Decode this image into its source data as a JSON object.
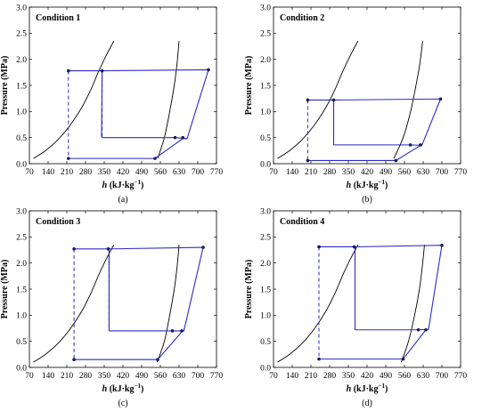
{
  "figure": {
    "colors": {
      "cycle": "#2b2bc8",
      "dashed": "#2b2bc8",
      "saturation": "#000000",
      "axis": "#000000"
    }
  },
  "chart_data": [
    {
      "type": "line",
      "panel_label": "(a)",
      "title": "Condition 1",
      "xlabel_italic": "h",
      "xlabel_rest": " (kJ·kg",
      "xlabel_sup": "−1",
      "xlabel_end": ")",
      "ylabel": "Pressure (MPa)",
      "xlim": [
        70,
        770
      ],
      "ylim": [
        0.0,
        3.0
      ],
      "xticks": [
        "70",
        "140",
        "210",
        "280",
        "350",
        "420",
        "490",
        "560",
        "630",
        "700",
        "770"
      ],
      "yticks": [
        "0.0",
        "0.5",
        "1.0",
        "1.5",
        "2.0",
        "2.5",
        "3.0"
      ],
      "series": [
        {
          "role": "saturation-liquid",
          "x": [
            85,
            130,
            175,
            220,
            265,
            300,
            330,
            360,
            386
          ],
          "y": [
            0.1,
            0.25,
            0.45,
            0.72,
            1.07,
            1.42,
            1.78,
            2.1,
            2.35
          ]
        },
        {
          "role": "saturation-vapor",
          "x": [
            550,
            575,
            595,
            612,
            622,
            630
          ],
          "y": [
            0.1,
            0.5,
            1.0,
            1.5,
            1.9,
            2.35
          ]
        },
        {
          "role": "cycle-solid",
          "x": [
            340,
            342,
            740,
            660,
            615,
            342
          ],
          "y": [
            0.5,
            1.78,
            1.8,
            0.48,
            0.5,
            0.5
          ]
        },
        {
          "role": "cycle-solid",
          "x": [
            216,
            540,
            644,
            660
          ],
          "y": [
            0.1,
            0.1,
            0.48,
            0.48
          ]
        },
        {
          "role": "line-high-left",
          "x": [
            216,
            342
          ],
          "y": [
            1.78,
            1.78
          ]
        },
        {
          "role": "dashed",
          "x": [
            216,
            216
          ],
          "y": [
            1.78,
            0.1
          ]
        },
        {
          "role": "dashed",
          "x": [
            342,
            342
          ],
          "y": [
            1.78,
            0.5
          ]
        },
        {
          "role": "points",
          "x": [
            216,
            342,
            740,
            615,
            644,
            216,
            540
          ],
          "y": [
            1.78,
            1.78,
            1.8,
            0.5,
            0.5,
            0.1,
            0.1
          ]
        }
      ]
    },
    {
      "type": "line",
      "panel_label": "(b)",
      "title": "Condition 2",
      "xlabel_italic": "h",
      "xlabel_rest": " (kJ·kg",
      "xlabel_sup": "−1",
      "xlabel_end": ")",
      "ylabel": "Pressure (MPa)",
      "xlim": [
        70,
        770
      ],
      "ylim": [
        0.0,
        3.0
      ],
      "xticks": [
        "70",
        "140",
        "210",
        "280",
        "350",
        "420",
        "490",
        "560",
        "630",
        "700",
        "770"
      ],
      "yticks": [
        "0.0",
        "0.5",
        "1.0",
        "1.5",
        "2.0",
        "2.5",
        "3.0"
      ],
      "series": [
        {
          "role": "saturation-liquid",
          "x": [
            85,
            130,
            175,
            220,
            265,
            300,
            330,
            360,
            386
          ],
          "y": [
            0.1,
            0.25,
            0.45,
            0.72,
            1.07,
            1.42,
            1.78,
            2.1,
            2.35
          ]
        },
        {
          "role": "saturation-vapor",
          "x": [
            520,
            555,
            583,
            603,
            617,
            628
          ],
          "y": [
            0.1,
            0.5,
            1.0,
            1.5,
            1.9,
            2.35
          ]
        },
        {
          "role": "cycle-solid",
          "x": [
            295,
            295,
            695,
            625,
            580,
            295
          ],
          "y": [
            0.36,
            1.22,
            1.24,
            0.35,
            0.36,
            0.36
          ]
        },
        {
          "role": "cycle-solid",
          "x": [
            198,
            528,
            620,
            625
          ],
          "y": [
            0.06,
            0.06,
            0.35,
            0.35
          ]
        },
        {
          "role": "line-high-left",
          "x": [
            198,
            295
          ],
          "y": [
            1.22,
            1.22
          ]
        },
        {
          "role": "dashed",
          "x": [
            198,
            198
          ],
          "y": [
            1.22,
            0.06
          ]
        },
        {
          "role": "dashed",
          "x": [
            295,
            295
          ],
          "y": [
            1.22,
            0.36
          ]
        },
        {
          "role": "points",
          "x": [
            198,
            295,
            695,
            582,
            620,
            198,
            528
          ],
          "y": [
            1.22,
            1.22,
            1.24,
            0.36,
            0.36,
            0.06,
            0.06
          ]
        }
      ]
    },
    {
      "type": "line",
      "panel_label": "(c)",
      "title": "Condition 3",
      "xlabel_italic": "h",
      "xlabel_rest": " (kJ·kg",
      "xlabel_sup": "−1",
      "xlabel_end": ")",
      "ylabel": "Pressure (MPa)",
      "xlim": [
        70,
        770
      ],
      "ylim": [
        0.0,
        3.0
      ],
      "xticks": [
        "70",
        "140",
        "210",
        "280",
        "350",
        "420",
        "490",
        "560",
        "630",
        "700",
        "770"
      ],
      "yticks": [
        "0.0",
        "0.5",
        "1.0",
        "1.5",
        "2.0",
        "2.5",
        "3.0"
      ],
      "series": [
        {
          "role": "saturation-liquid",
          "x": [
            85,
            130,
            175,
            220,
            265,
            300,
            330,
            360,
            386
          ],
          "y": [
            0.1,
            0.25,
            0.45,
            0.72,
            1.07,
            1.42,
            1.78,
            2.1,
            2.35
          ]
        },
        {
          "role": "saturation-vapor",
          "x": [
            548,
            575,
            595,
            612,
            622,
            630
          ],
          "y": [
            0.1,
            0.5,
            1.0,
            1.5,
            1.9,
            2.35
          ]
        },
        {
          "role": "cycle-solid",
          "x": [
            368,
            368,
            720,
            648,
            605,
            368
          ],
          "y": [
            0.7,
            2.27,
            2.3,
            0.7,
            0.7,
            0.7
          ]
        },
        {
          "role": "cycle-solid",
          "x": [
            237,
            550,
            640,
            648
          ],
          "y": [
            0.15,
            0.15,
            0.68,
            0.7
          ]
        },
        {
          "role": "line-high-left",
          "x": [
            237,
            368
          ],
          "y": [
            2.27,
            2.27
          ]
        },
        {
          "role": "dashed",
          "x": [
            237,
            237
          ],
          "y": [
            2.27,
            0.15
          ]
        },
        {
          "role": "dashed",
          "x": [
            368,
            368
          ],
          "y": [
            2.27,
            0.7
          ]
        },
        {
          "role": "points",
          "x": [
            237,
            365,
            720,
            605,
            640,
            237,
            550
          ],
          "y": [
            2.27,
            2.27,
            2.3,
            0.7,
            0.7,
            0.15,
            0.15
          ]
        }
      ]
    },
    {
      "type": "line",
      "panel_label": "(d)",
      "title": "Condition 4",
      "xlabel_italic": "h",
      "xlabel_rest": " (kJ·kg",
      "xlabel_sup": "−1",
      "xlabel_end": ")",
      "ylabel": "Pressure (MPa)",
      "xlim": [
        70,
        770
      ],
      "ylim": [
        0.0,
        3.0
      ],
      "xticks": [
        "70",
        "140",
        "210",
        "280",
        "350",
        "420",
        "490",
        "560",
        "630",
        "700",
        "770"
      ],
      "yticks": [
        "0.0",
        "0.5",
        "1.0",
        "1.5",
        "2.0",
        "2.5",
        "3.0"
      ],
      "series": [
        {
          "role": "saturation-liquid",
          "x": [
            85,
            130,
            175,
            220,
            265,
            300,
            330,
            360,
            386
          ],
          "y": [
            0.1,
            0.25,
            0.45,
            0.72,
            1.07,
            1.42,
            1.78,
            2.1,
            2.35
          ]
        },
        {
          "role": "saturation-vapor",
          "x": [
            548,
            575,
            598,
            616,
            626,
            635
          ],
          "y": [
            0.1,
            0.5,
            1.0,
            1.5,
            1.9,
            2.35
          ]
        },
        {
          "role": "cycle-solid",
          "x": [
            375,
            375,
            700,
            650,
            610,
            375
          ],
          "y": [
            0.72,
            2.31,
            2.34,
            0.73,
            0.72,
            0.72
          ]
        },
        {
          "role": "cycle-solid",
          "x": [
            240,
            555,
            640,
            650
          ],
          "y": [
            0.16,
            0.16,
            0.72,
            0.73
          ]
        },
        {
          "role": "line-high-left",
          "x": [
            240,
            375
          ],
          "y": [
            2.31,
            2.31
          ]
        },
        {
          "role": "dashed",
          "x": [
            240,
            240
          ],
          "y": [
            2.31,
            0.16
          ]
        },
        {
          "role": "dashed",
          "x": [
            375,
            375
          ],
          "y": [
            2.31,
            0.72
          ]
        },
        {
          "role": "points",
          "x": [
            240,
            372,
            700,
            612,
            640,
            240,
            555
          ],
          "y": [
            2.31,
            2.31,
            2.34,
            0.72,
            0.72,
            0.16,
            0.16
          ]
        }
      ]
    }
  ]
}
